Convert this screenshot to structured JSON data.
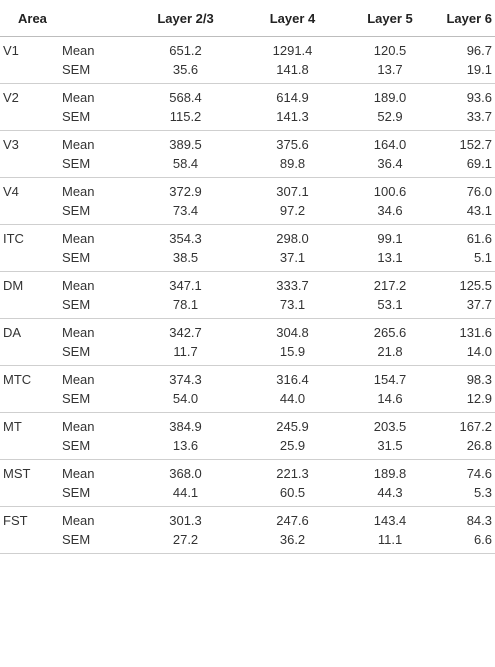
{
  "header": {
    "area": "Area",
    "columns": [
      "Layer 2/3",
      "Layer 4",
      "Layer 5",
      "Layer 6"
    ]
  },
  "rows": [
    {
      "area": "V1",
      "mean_label": "Mean",
      "sem_label": "SEM",
      "mean": [
        "651.2",
        "1291.4",
        "120.5",
        "96.7"
      ],
      "sem": [
        "35.6",
        "141.8",
        "13.7",
        "19.1"
      ]
    },
    {
      "area": "V2",
      "mean_label": "Mean",
      "sem_label": "SEM",
      "mean": [
        "568.4",
        "614.9",
        "189.0",
        "93.6"
      ],
      "sem": [
        "115.2",
        "141.3",
        "52.9",
        "33.7"
      ]
    },
    {
      "area": "V3",
      "mean_label": "Mean",
      "sem_label": "SEM",
      "mean": [
        "389.5",
        "375.6",
        "164.0",
        "152.7"
      ],
      "sem": [
        "58.4",
        "89.8",
        "36.4",
        "69.1"
      ]
    },
    {
      "area": "V4",
      "mean_label": "Mean",
      "sem_label": "SEM",
      "mean": [
        "372.9",
        "307.1",
        "100.6",
        "76.0"
      ],
      "sem": [
        "73.4",
        "97.2",
        "34.6",
        "43.1"
      ]
    },
    {
      "area": "ITC",
      "mean_label": "Mean",
      "sem_label": "SEM",
      "mean": [
        "354.3",
        "298.0",
        "99.1",
        "61.6"
      ],
      "sem": [
        "38.5",
        "37.1",
        "13.1",
        "5.1"
      ]
    },
    {
      "area": "DM",
      "mean_label": "Mean",
      "sem_label": "SEM",
      "mean": [
        "347.1",
        "333.7",
        "217.2",
        "125.5"
      ],
      "sem": [
        "78.1",
        "73.1",
        "53.1",
        "37.7"
      ]
    },
    {
      "area": "DA",
      "mean_label": "Mean",
      "sem_label": "SEM",
      "mean": [
        "342.7",
        "304.8",
        "265.6",
        "131.6"
      ],
      "sem": [
        "11.7",
        "15.9",
        "21.8",
        "14.0"
      ]
    },
    {
      "area": "MTC",
      "mean_label": "Mean",
      "sem_label": "SEM",
      "mean": [
        "374.3",
        "316.4",
        "154.7",
        "98.3"
      ],
      "sem": [
        "54.0",
        "44.0",
        "14.6",
        "12.9"
      ]
    },
    {
      "area": "MT",
      "mean_label": "Mean",
      "sem_label": "SEM",
      "mean": [
        "384.9",
        "245.9",
        "203.5",
        "167.2"
      ],
      "sem": [
        "13.6",
        "25.9",
        "31.5",
        "26.8"
      ]
    },
    {
      "area": "MST",
      "mean_label": "Mean",
      "sem_label": "SEM",
      "mean": [
        "368.0",
        "221.3",
        "189.8",
        "74.6"
      ],
      "sem": [
        "44.1",
        "60.5",
        "44.3",
        "5.3"
      ]
    },
    {
      "area": "FST",
      "mean_label": "Mean",
      "sem_label": "SEM",
      "mean": [
        "301.3",
        "247.6",
        "143.4",
        "84.3"
      ],
      "sem": [
        "27.2",
        "36.2",
        "11.1",
        "6.6"
      ]
    }
  ]
}
